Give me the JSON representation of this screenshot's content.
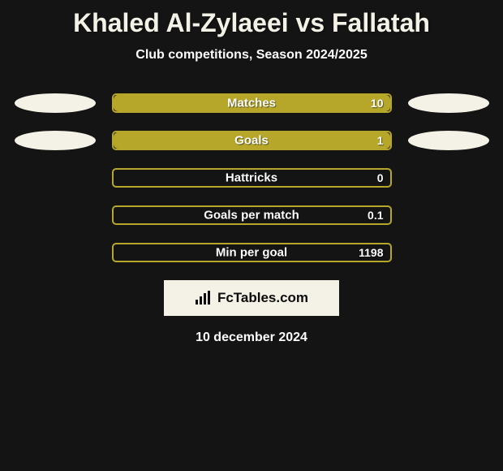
{
  "background_color": "#141414",
  "title": {
    "text": "Khaled Al-Zylaeei vs Fallatah",
    "color": "#f4f2e6",
    "fontsize": 32
  },
  "subtitle": {
    "text": "Club competitions, Season 2024/2025",
    "color": "#fdfdfd",
    "fontsize": 16
  },
  "bar_track_color": "#141414",
  "bar_border_color": "#b6a72b",
  "bar_fill_color": "#b6a72b",
  "label_text_color": "#ffffff",
  "value_text_color": "#ffffff",
  "blob_color": "#f4f2e6",
  "rows": [
    {
      "label": "Matches",
      "value": "10",
      "fill_pct": 100,
      "show_blobs": true
    },
    {
      "label": "Goals",
      "value": "1",
      "fill_pct": 100,
      "show_blobs": true
    },
    {
      "label": "Hattricks",
      "value": "0",
      "fill_pct": 0,
      "show_blobs": false
    },
    {
      "label": "Goals per match",
      "value": "0.1",
      "fill_pct": 0,
      "show_blobs": false
    },
    {
      "label": "Min per goal",
      "value": "1198",
      "fill_pct": 0,
      "show_blobs": false
    }
  ],
  "logo": {
    "text": "FcTables.com",
    "box_bg": "#f4f2e6",
    "text_color": "#0b0b0b",
    "icon_color": "#0b0b0b"
  },
  "date": {
    "text": "10 december 2024",
    "color": "#fdfdfd",
    "fontsize": 16
  }
}
